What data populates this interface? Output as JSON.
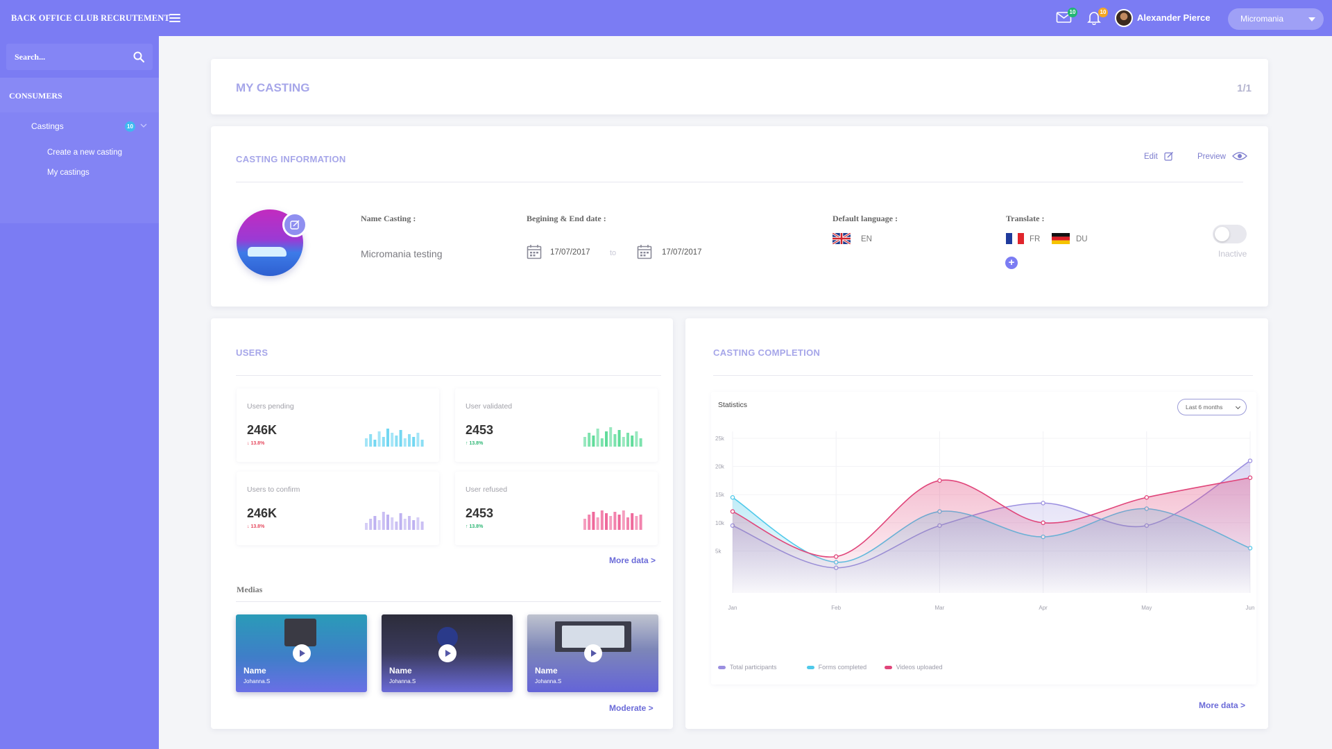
{
  "app": {
    "title": "BACK OFFICE CLUB RECRUTEMENT"
  },
  "header": {
    "mail_badge": "10",
    "bell_badge": "10",
    "user_name": "Alexander Pierce",
    "selector_value": "Micromania"
  },
  "sidebar": {
    "search_placeholder": "Search...",
    "section": "CONSUMERS",
    "castings_label": "Castings",
    "castings_badge": "10",
    "links": [
      "Create a new casting",
      "My castings"
    ]
  },
  "my_casting": {
    "title": "MY CASTING",
    "page": "1/1"
  },
  "casting_info": {
    "title": "CASTING INFORMATION",
    "edit_label": "Edit",
    "preview_label": "Preview",
    "name_label": "Name Casting :",
    "name_value": "Micromania testing",
    "dates_label": "Begining & End date :",
    "start_date": "17/07/2017",
    "to_label": "to",
    "end_date": "17/07/2017",
    "default_language_label": "Default language :",
    "default_language": "EN",
    "translate_label": "Translate :",
    "translations": [
      "FR",
      "DU"
    ],
    "status": "Inactive"
  },
  "users": {
    "title": "USERS",
    "stats": [
      {
        "label": "Users pending",
        "value": "246K",
        "change": "13.8%",
        "direction": "down",
        "color": "#5ad0f0"
      },
      {
        "label": "User validated",
        "value": "2453",
        "change": "13.8%",
        "direction": "up",
        "color": "#45d68a"
      },
      {
        "label": "Users to confirm",
        "value": "246K",
        "change": "13.8%",
        "direction": "down",
        "color": "#b3a4ee"
      },
      {
        "label": "User refused",
        "value": "2453",
        "change": "13.8%",
        "direction": "up",
        "color": "#ec4f8a"
      }
    ],
    "more_label": "More data >",
    "medias_label": "Medias",
    "medias": [
      {
        "name": "Name",
        "author": "Johanna.S"
      },
      {
        "name": "Name",
        "author": "Johanna.S"
      },
      {
        "name": "Name",
        "author": "Johanna.S"
      }
    ],
    "moderate_label": "Moderate >"
  },
  "completion": {
    "title": "CASTING COMPLETION",
    "more_label": "More data >"
  },
  "chart_data": {
    "type": "area",
    "title": "Statistics",
    "period_select": "Last 6 months",
    "categories": [
      "Jan",
      "Feb",
      "Mar",
      "Apr",
      "May",
      "Jun"
    ],
    "y_ticks": [
      "25k",
      "20k",
      "15k",
      "10k",
      "5k"
    ],
    "ylim": [
      0,
      25000
    ],
    "grid": true,
    "legend_position": "bottom-left",
    "series": [
      {
        "name": "Total participants",
        "color": "#9b8fe0",
        "values": [
          9500,
          2000,
          9500,
          13500,
          9500,
          21000
        ]
      },
      {
        "name": "Forms completed",
        "color": "#4fc9ea",
        "values": [
          14500,
          3000,
          12000,
          7500,
          12500,
          5500
        ]
      },
      {
        "name": "Videos uploaded",
        "color": "#e0457a",
        "values": [
          12000,
          4000,
          17500,
          10000,
          14500,
          18000
        ]
      }
    ]
  }
}
